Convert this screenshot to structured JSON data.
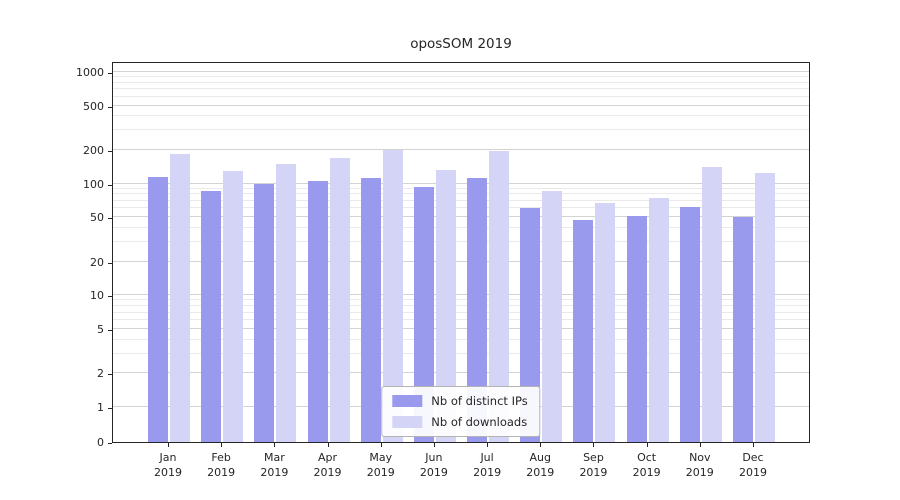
{
  "chart_data": {
    "type": "bar",
    "title": "oposSOM 2019",
    "categories": [
      "Jan 2019",
      "Feb 2019",
      "Mar 2019",
      "Apr 2019",
      "May 2019",
      "Jun 2019",
      "Jul 2019",
      "Aug 2019",
      "Sep 2019",
      "Oct 2019",
      "Nov 2019",
      "Dec 2019"
    ],
    "series": [
      {
        "name": "Nb of distinct IPs",
        "color": "#9999ee",
        "values": [
          115,
          85,
          100,
          105,
          113,
          93,
          112,
          60,
          47,
          51,
          62,
          50
        ]
      },
      {
        "name": "Nb of downloads",
        "color": "#d4d4f7",
        "values": [
          185,
          130,
          150,
          170,
          200,
          133,
          195,
          85,
          67,
          75,
          140,
          125
        ]
      }
    ],
    "yticks": [
      0,
      1,
      2,
      5,
      10,
      20,
      50,
      100,
      200,
      500,
      1000
    ],
    "yscale": "symlog",
    "ylim": [
      0,
      1230
    ],
    "grid": "horizontal",
    "legend_position": "lower center"
  }
}
